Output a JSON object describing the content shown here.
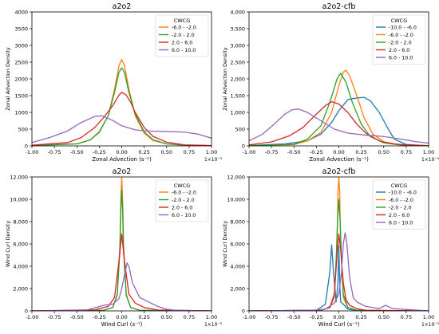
{
  "chart_data": [
    {
      "type": "line",
      "title": "a2o2",
      "xlabel": "Zonal Advection (s⁻¹)",
      "ylabel": "Zonal Advection Density",
      "x_offset_label": "1×10⁻³",
      "xlim": [
        -1.0,
        1.0
      ],
      "ylim": [
        0,
        4000
      ],
      "xticks": [
        "-1.00",
        "-0.75",
        "-0.50",
        "-0.25",
        "0.00",
        "0.25",
        "0.50",
        "0.75",
        "1.00"
      ],
      "yticks": [
        "0",
        "500",
        "1000",
        "1500",
        "2000",
        "2500",
        "3000",
        "3500",
        "4000"
      ],
      "legend_title": "CWCG",
      "legend_position": "top-right",
      "series": [
        {
          "name": "-6.0 - -2.0",
          "color": "#ff7f0e",
          "x": [
            -1.0,
            -0.5,
            -0.35,
            -0.25,
            -0.15,
            -0.08,
            -0.03,
            0.0,
            0.03,
            0.08,
            0.15,
            0.25,
            0.35,
            0.5,
            0.7,
            1.0
          ],
          "y": [
            10,
            60,
            180,
            400,
            900,
            1700,
            2400,
            2580,
            2400,
            1700,
            900,
            380,
            160,
            60,
            20,
            5
          ]
        },
        {
          "name": "-2.0 - 2.0",
          "color": "#2ca02c",
          "x": [
            -1.0,
            -0.5,
            -0.35,
            -0.25,
            -0.15,
            -0.08,
            -0.03,
            0.0,
            0.03,
            0.08,
            0.15,
            0.25,
            0.35,
            0.5,
            0.7,
            1.0
          ],
          "y": [
            10,
            60,
            180,
            420,
            900,
            1600,
            2200,
            2330,
            2200,
            1600,
            950,
            420,
            180,
            60,
            20,
            5
          ]
        },
        {
          "name": "2.0 - 6.0",
          "color": "#d62728",
          "x": [
            -1.0,
            -0.6,
            -0.45,
            -0.3,
            -0.2,
            -0.1,
            -0.03,
            0.0,
            0.05,
            0.1,
            0.15,
            0.25,
            0.35,
            0.5,
            0.7,
            1.0
          ],
          "y": [
            20,
            100,
            250,
            550,
            850,
            1200,
            1520,
            1600,
            1520,
            1300,
            1000,
            550,
            280,
            110,
            30,
            10
          ]
        },
        {
          "name": "6.0 - 10.0",
          "color": "#9467bd",
          "x": [
            -1.0,
            -0.8,
            -0.6,
            -0.45,
            -0.3,
            -0.22,
            -0.1,
            0.0,
            0.15,
            0.3,
            0.5,
            0.7,
            0.85,
            1.0
          ],
          "y": [
            100,
            250,
            450,
            700,
            880,
            900,
            760,
            600,
            480,
            440,
            430,
            410,
            350,
            230
          ]
        }
      ]
    },
    {
      "type": "line",
      "title": "a2o2-cfb",
      "xlabel": "Zonal Advection (s⁻¹)",
      "ylabel": "Zonal Advection Density",
      "x_offset_label": "1×10⁻³",
      "xlim": [
        -1.0,
        1.0
      ],
      "ylim": [
        0,
        4000
      ],
      "xticks": [
        "-1.00",
        "-0.75",
        "-0.50",
        "-0.25",
        "0.00",
        "0.25",
        "0.50",
        "0.75",
        "1.00"
      ],
      "yticks": [
        "0",
        "500",
        "1,000",
        "1,500",
        "2,000",
        "2,500",
        "3,000",
        "3,500",
        "4,000"
      ],
      "legend_title": "CWCG",
      "legend_position": "top-right",
      "series": [
        {
          "name": "-10.0 - -6.0",
          "color": "#1f77b4",
          "x": [
            -1.0,
            -0.6,
            -0.35,
            -0.2,
            -0.08,
            0.0,
            0.1,
            0.2,
            0.28,
            0.35,
            0.45,
            0.55,
            0.62,
            0.75,
            1.0
          ],
          "y": [
            10,
            60,
            150,
            350,
            700,
            1050,
            1380,
            1430,
            1450,
            1350,
            1000,
            500,
            200,
            40,
            5
          ]
        },
        {
          "name": "-6.0 - -2.0",
          "color": "#ff7f0e",
          "x": [
            -1.0,
            -0.5,
            -0.35,
            -0.2,
            -0.08,
            0.0,
            0.05,
            0.08,
            0.12,
            0.2,
            0.28,
            0.38,
            0.5,
            0.7,
            1.0
          ],
          "y": [
            5,
            40,
            150,
            400,
            1000,
            1800,
            2200,
            2260,
            2100,
            1500,
            850,
            350,
            120,
            25,
            5
          ]
        },
        {
          "name": "-2.0 - 2.0",
          "color": "#2ca02c",
          "x": [
            -1.0,
            -0.5,
            -0.35,
            -0.2,
            -0.1,
            -0.02,
            0.02,
            0.08,
            0.15,
            0.25,
            0.35,
            0.5,
            0.7,
            1.0
          ],
          "y": [
            5,
            50,
            200,
            600,
            1300,
            2000,
            2170,
            1900,
            1300,
            650,
            280,
            90,
            20,
            5
          ]
        },
        {
          "name": "2.0 - 6.0",
          "color": "#d62728",
          "x": [
            -1.0,
            -0.75,
            -0.55,
            -0.4,
            -0.25,
            -0.15,
            -0.08,
            0.0,
            0.1,
            0.2,
            0.3,
            0.45,
            0.6,
            0.8,
            1.0
          ],
          "y": [
            30,
            120,
            300,
            550,
            950,
            1200,
            1320,
            1250,
            1000,
            650,
            380,
            150,
            60,
            20,
            5
          ]
        },
        {
          "name": "6.0 - 10.0",
          "color": "#9467bd",
          "x": [
            -1.0,
            -0.85,
            -0.72,
            -0.6,
            -0.52,
            -0.45,
            -0.35,
            -0.2,
            -0.05,
            0.1,
            0.3,
            0.5,
            0.7,
            0.85,
            1.0
          ],
          "y": [
            150,
            350,
            650,
            950,
            1080,
            1100,
            1000,
            750,
            500,
            380,
            320,
            280,
            200,
            130,
            80
          ]
        }
      ]
    },
    {
      "type": "line",
      "title": "a2o2",
      "xlabel": "Wind Curl (s⁻¹)",
      "ylabel": "Wind Curl Density",
      "x_offset_label": "1×10⁻³",
      "xlim": [
        -1.0,
        1.0
      ],
      "ylim": [
        0,
        12000
      ],
      "xticks": [
        "-1.00",
        "-0.75",
        "-0.50",
        "-0.25",
        "0.00",
        "0.25",
        "0.50",
        "0.75",
        "1.00"
      ],
      "yticks": [
        "0",
        "2,000",
        "4,000",
        "6,000",
        "8,000",
        "10,000",
        "12,000"
      ],
      "legend_title": "CWCG",
      "legend_position": "top-right",
      "series": [
        {
          "name": "-6.0 - -2.0",
          "color": "#ff7f0e",
          "x": [
            -1.0,
            -0.2,
            -0.1,
            -0.05,
            -0.02,
            -0.01,
            0.0,
            0.01,
            0.02,
            0.05,
            0.1,
            0.2,
            1.0
          ],
          "y": [
            0,
            50,
            300,
            1500,
            6000,
            10000,
            12000,
            10000,
            6000,
            1500,
            300,
            50,
            0
          ]
        },
        {
          "name": "-2.0 - 2.0",
          "color": "#2ca02c",
          "x": [
            -1.0,
            -0.2,
            -0.1,
            -0.05,
            -0.02,
            -0.01,
            0.0,
            0.01,
            0.02,
            0.05,
            0.1,
            0.2,
            1.0
          ],
          "y": [
            0,
            50,
            300,
            1400,
            5500,
            9000,
            10800,
            9000,
            5500,
            1400,
            300,
            50,
            0
          ]
        },
        {
          "name": "2.0 - 6.0",
          "color": "#d62728",
          "x": [
            -1.0,
            -0.3,
            -0.15,
            -0.08,
            -0.03,
            0.0,
            0.03,
            0.08,
            0.15,
            0.25,
            0.4,
            1.0
          ],
          "y": [
            0,
            100,
            400,
            1200,
            4500,
            6900,
            4500,
            1500,
            700,
            300,
            80,
            0
          ]
        },
        {
          "name": "6.0 - 10.0",
          "color": "#9467bd",
          "x": [
            -1.0,
            -0.4,
            -0.2,
            -0.1,
            -0.03,
            0.0,
            0.04,
            0.06,
            0.08,
            0.12,
            0.2,
            0.3,
            0.4,
            0.5,
            0.6,
            1.0
          ],
          "y": [
            0,
            50,
            500,
            600,
            1100,
            2000,
            3600,
            4300,
            4000,
            2500,
            1200,
            800,
            400,
            150,
            50,
            0
          ]
        }
      ]
    },
    {
      "type": "line",
      "title": "a2o2-cfb",
      "xlabel": "Wind Curl (s⁻¹)",
      "ylabel": "Wind Curl Density",
      "x_offset_label": "1×10⁻³",
      "xlim": [
        -1.0,
        1.0
      ],
      "ylim": [
        0,
        12000
      ],
      "xticks": [
        "-1.00",
        "-0.75",
        "-0.50",
        "-0.25",
        "0.00",
        "0.25",
        "0.50",
        "0.75",
        "1.00"
      ],
      "yticks": [
        "0",
        "2,000",
        "4,000",
        "6,000",
        "8,000",
        "10,000",
        "12,000"
      ],
      "legend_title": "CWCG",
      "legend_position": "top-right",
      "series": [
        {
          "name": "-10.0 - -6.0",
          "color": "#1f77b4",
          "x": [
            -1.0,
            -0.25,
            -0.15,
            -0.1,
            -0.08,
            -0.06,
            -0.03,
            -0.01,
            0.0,
            0.01,
            0.02,
            0.05,
            0.1,
            0.2,
            0.4,
            1.0
          ],
          "y": [
            0,
            50,
            600,
            3500,
            5900,
            3500,
            800,
            2500,
            5800,
            2500,
            800,
            600,
            150,
            30,
            10,
            0
          ]
        },
        {
          "name": "-6.0 - -2.0",
          "color": "#ff7f0e",
          "x": [
            -1.0,
            -0.2,
            -0.1,
            -0.05,
            -0.02,
            -0.01,
            0.0,
            0.01,
            0.02,
            0.05,
            0.1,
            0.2,
            1.0
          ],
          "y": [
            0,
            50,
            300,
            1200,
            6000,
            10500,
            12000,
            10500,
            6000,
            1200,
            300,
            50,
            0
          ]
        },
        {
          "name": "-2.0 - 2.0",
          "color": "#2ca02c",
          "x": [
            -1.0,
            -0.2,
            -0.1,
            -0.05,
            -0.03,
            -0.015,
            0.0,
            0.015,
            0.03,
            0.05,
            0.1,
            0.2,
            1.0
          ],
          "y": [
            0,
            50,
            300,
            1500,
            4500,
            8000,
            10000,
            8000,
            4500,
            1500,
            300,
            50,
            0
          ]
        },
        {
          "name": "2.0 - 6.0",
          "color": "#d62728",
          "x": [
            -1.0,
            -0.2,
            -0.1,
            -0.05,
            -0.02,
            0.0,
            0.02,
            0.03,
            0.05,
            0.08,
            0.12,
            0.2,
            0.3,
            1.0
          ],
          "y": [
            0,
            50,
            300,
            1500,
            5000,
            6900,
            5500,
            4500,
            2500,
            1000,
            500,
            200,
            50,
            0
          ]
        },
        {
          "name": "6.0 - 10.0",
          "color": "#9467bd",
          "x": [
            -1.0,
            -0.3,
            -0.15,
            -0.05,
            0.0,
            0.03,
            0.05,
            0.07,
            0.09,
            0.12,
            0.16,
            0.2,
            0.3,
            0.45,
            0.52,
            0.6,
            1.0
          ],
          "y": [
            0,
            50,
            150,
            700,
            1500,
            3500,
            6000,
            7000,
            6000,
            3000,
            1200,
            800,
            400,
            200,
            500,
            200,
            0
          ]
        }
      ]
    }
  ]
}
